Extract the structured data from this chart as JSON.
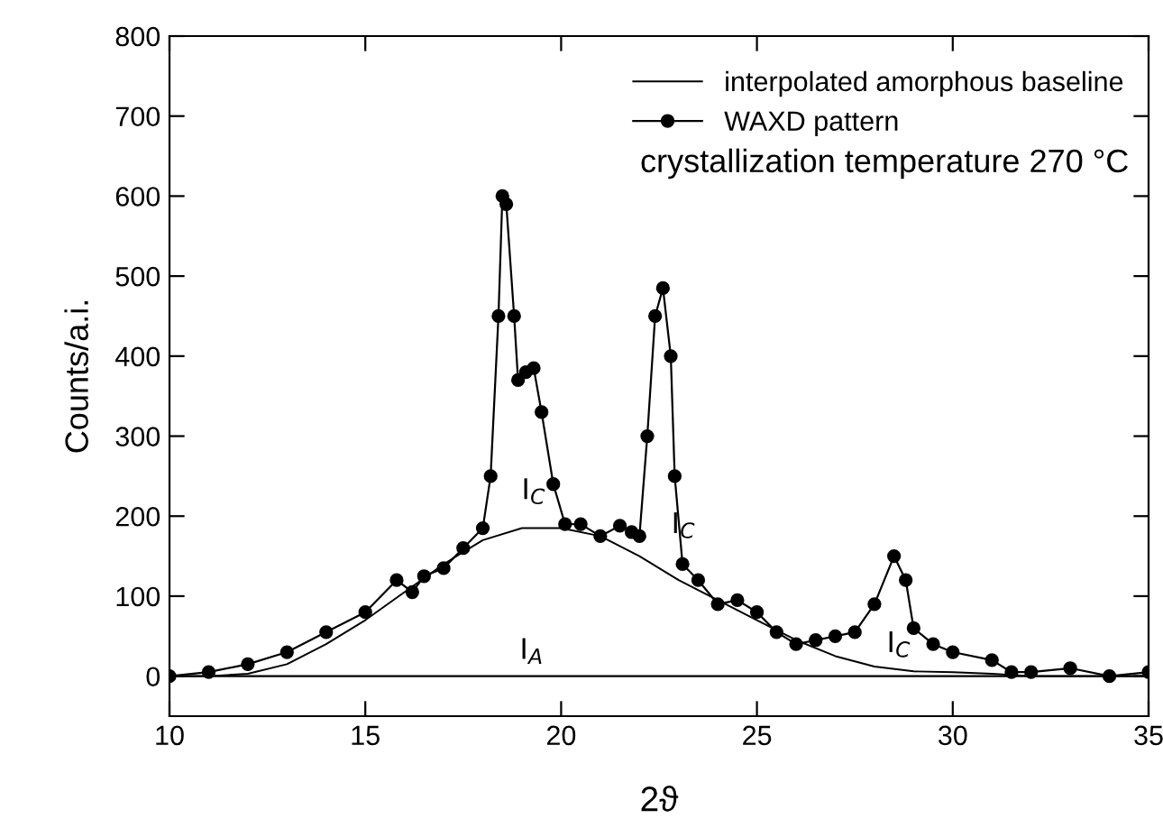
{
  "chart_data": {
    "type": "line",
    "xlabel": "2ϑ",
    "ylabel": "Counts/a.i.",
    "xlim": [
      10,
      35
    ],
    "ylim": [
      -50,
      800
    ],
    "xticks": [
      10,
      15,
      20,
      25,
      30,
      35
    ],
    "yticks": [
      0,
      100,
      200,
      300,
      400,
      500,
      600,
      700,
      800
    ],
    "grid": false,
    "legend": "top right",
    "series": [
      {
        "name": "interpolated amorphous baseline",
        "color": "#000000",
        "marker": "none",
        "x": [
          10,
          11,
          12,
          13,
          14,
          15,
          16,
          17,
          18,
          19,
          20,
          21,
          22,
          23,
          24,
          25,
          26,
          27,
          28,
          29,
          30,
          31,
          32,
          33,
          34,
          35
        ],
        "values": [
          0,
          0,
          3,
          15,
          40,
          70,
          105,
          140,
          170,
          185,
          185,
          175,
          150,
          120,
          95,
          70,
          45,
          25,
          12,
          6,
          5,
          3,
          0,
          0,
          0,
          0
        ]
      },
      {
        "name": "WAXD pattern",
        "color": "#000000",
        "marker": "circle",
        "x": [
          10,
          11,
          12,
          13,
          14,
          15,
          15.8,
          16.2,
          16.5,
          17,
          17.5,
          18,
          18.2,
          18.4,
          18.5,
          18.6,
          18.8,
          18.9,
          19.1,
          19.3,
          19.5,
          19.8,
          20.1,
          20.5,
          21,
          21.5,
          21.8,
          22,
          22.2,
          22.4,
          22.6,
          22.8,
          22.9,
          23.1,
          23.5,
          24,
          24.5,
          25,
          25.5,
          26,
          26.5,
          27,
          27.5,
          28,
          28.5,
          28.8,
          29,
          29.5,
          30,
          31,
          31.5,
          32,
          33,
          34,
          35
        ],
        "values": [
          0,
          5,
          15,
          30,
          55,
          80,
          120,
          105,
          125,
          135,
          160,
          185,
          250,
          450,
          600,
          590,
          450,
          370,
          380,
          385,
          330,
          240,
          190,
          190,
          175,
          188,
          180,
          175,
          300,
          450,
          485,
          400,
          250,
          140,
          120,
          90,
          95,
          80,
          55,
          40,
          45,
          50,
          55,
          90,
          150,
          120,
          60,
          40,
          30,
          20,
          5,
          5,
          10,
          0,
          5
        ]
      }
    ],
    "ref_lines": [
      {
        "axis": "y",
        "value": 0,
        "color": "#000000"
      }
    ],
    "annotations": [
      "crystallization temperature 270 °C",
      "I$_{C}$",
      "I$_{C}$",
      "I$_{C}$",
      "I$_{A}$"
    ]
  }
}
